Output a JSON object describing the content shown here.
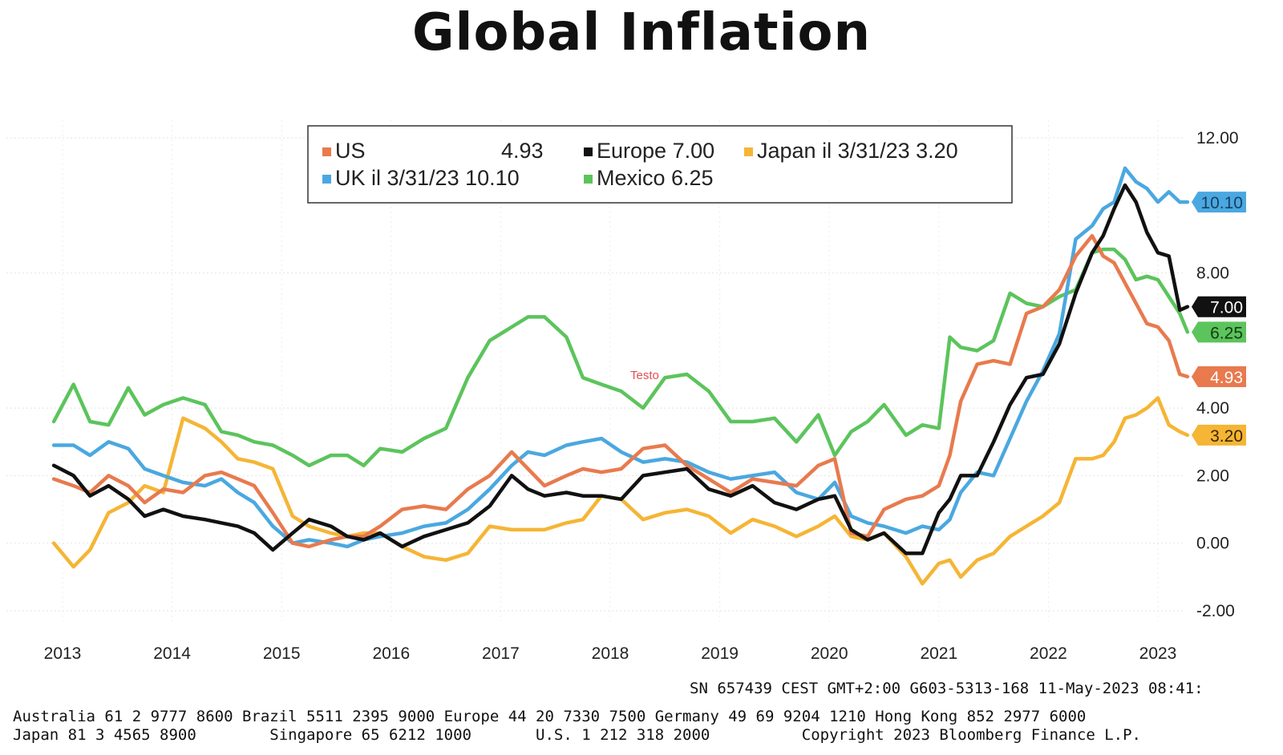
{
  "chart_data": {
    "type": "line",
    "title": "Global Inflation",
    "ylim": [
      -2,
      12
    ],
    "y_ticks": [
      "12.00",
      "8.00",
      "4.00",
      "2.00",
      "0.00",
      "-2.00"
    ],
    "x_ticks": [
      "2013",
      "2014",
      "2015",
      "2016",
      "2017",
      "2018",
      "2019",
      "2020",
      "2021",
      "2022",
      "2023"
    ],
    "grid": true,
    "legend_position": "top",
    "annotation": "Testo",
    "series": [
      {
        "name": "US",
        "legend_mid": "",
        "legend_value": "4.93",
        "badge": "4.93",
        "color": "#e87a4e",
        "x": [
          2012.92,
          2013.1,
          2013.25,
          2013.42,
          2013.6,
          2013.75,
          2013.92,
          2014.1,
          2014.3,
          2014.45,
          2014.6,
          2014.75,
          2014.92,
          2015.1,
          2015.25,
          2015.45,
          2015.6,
          2015.75,
          2015.9,
          2016.1,
          2016.3,
          2016.5,
          2016.7,
          2016.9,
          2017.1,
          2017.25,
          2017.4,
          2017.6,
          2017.75,
          2017.92,
          2018.1,
          2018.3,
          2018.5,
          2018.7,
          2018.9,
          2019.1,
          2019.3,
          2019.5,
          2019.7,
          2019.9,
          2020.05,
          2020.2,
          2020.35,
          2020.5,
          2020.7,
          2020.85,
          2021.0,
          2021.1,
          2021.2,
          2021.35,
          2021.5,
          2021.65,
          2021.8,
          2021.95,
          2022.1,
          2022.25,
          2022.4,
          2022.5,
          2022.6,
          2022.7,
          2022.8,
          2022.9,
          2023.0,
          2023.1,
          2023.2,
          2023.27
        ],
        "y": [
          1.9,
          1.7,
          1.5,
          2.0,
          1.7,
          1.2,
          1.6,
          1.5,
          2.0,
          2.1,
          1.9,
          1.7,
          0.9,
          0.0,
          -0.1,
          0.1,
          0.2,
          0.2,
          0.5,
          1.0,
          1.1,
          1.0,
          1.6,
          2.0,
          2.7,
          2.2,
          1.7,
          2.0,
          2.2,
          2.1,
          2.2,
          2.8,
          2.9,
          2.3,
          1.9,
          1.5,
          1.9,
          1.8,
          1.7,
          2.3,
          2.5,
          0.3,
          0.2,
          1.0,
          1.3,
          1.4,
          1.7,
          2.6,
          4.2,
          5.3,
          5.4,
          5.3,
          6.8,
          7.0,
          7.5,
          8.5,
          9.1,
          8.5,
          8.3,
          7.7,
          7.1,
          6.5,
          6.4,
          6.0,
          5.0,
          4.93
        ]
      },
      {
        "name": "Europe",
        "legend_mid": "",
        "legend_value": "7.00",
        "badge": "7.00",
        "color": "#111111",
        "x": [
          2012.92,
          2013.1,
          2013.25,
          2013.42,
          2013.6,
          2013.75,
          2013.92,
          2014.1,
          2014.3,
          2014.45,
          2014.6,
          2014.75,
          2014.92,
          2015.1,
          2015.25,
          2015.45,
          2015.6,
          2015.75,
          2015.9,
          2016.1,
          2016.3,
          2016.5,
          2016.7,
          2016.9,
          2017.1,
          2017.25,
          2017.4,
          2017.6,
          2017.75,
          2017.92,
          2018.1,
          2018.3,
          2018.5,
          2018.7,
          2018.9,
          2019.1,
          2019.3,
          2019.5,
          2019.7,
          2019.9,
          2020.05,
          2020.2,
          2020.35,
          2020.5,
          2020.7,
          2020.85,
          2021.0,
          2021.1,
          2021.2,
          2021.35,
          2021.5,
          2021.65,
          2021.8,
          2021.95,
          2022.1,
          2022.25,
          2022.4,
          2022.5,
          2022.6,
          2022.7,
          2022.8,
          2022.9,
          2023.0,
          2023.1,
          2023.2,
          2023.27
        ],
        "y": [
          2.3,
          2.0,
          1.4,
          1.7,
          1.3,
          0.8,
          1.0,
          0.8,
          0.7,
          0.6,
          0.5,
          0.3,
          -0.2,
          0.3,
          0.7,
          0.5,
          0.2,
          0.1,
          0.3,
          -0.1,
          0.2,
          0.4,
          0.6,
          1.1,
          2.0,
          1.6,
          1.4,
          1.5,
          1.4,
          1.4,
          1.3,
          2.0,
          2.1,
          2.2,
          1.6,
          1.4,
          1.7,
          1.2,
          1.0,
          1.3,
          1.4,
          0.4,
          0.1,
          0.3,
          -0.3,
          -0.3,
          0.9,
          1.3,
          2.0,
          2.0,
          3.0,
          4.1,
          4.9,
          5.0,
          5.9,
          7.4,
          8.6,
          9.1,
          9.9,
          10.6,
          10.1,
          9.2,
          8.6,
          8.5,
          6.9,
          7.0
        ]
      },
      {
        "name": "Japan",
        "legend_mid": "il 3/31/23",
        "legend_value": "3.20",
        "badge": "3.20",
        "color": "#f5b535",
        "x": [
          2012.92,
          2013.1,
          2013.25,
          2013.42,
          2013.6,
          2013.75,
          2013.92,
          2014.1,
          2014.3,
          2014.45,
          2014.6,
          2014.75,
          2014.92,
          2015.1,
          2015.25,
          2015.45,
          2015.6,
          2015.75,
          2015.9,
          2016.1,
          2016.3,
          2016.5,
          2016.7,
          2016.9,
          2017.1,
          2017.25,
          2017.4,
          2017.6,
          2017.75,
          2017.92,
          2018.1,
          2018.3,
          2018.5,
          2018.7,
          2018.9,
          2019.1,
          2019.3,
          2019.5,
          2019.7,
          2019.9,
          2020.05,
          2020.2,
          2020.35,
          2020.5,
          2020.7,
          2020.85,
          2021.0,
          2021.1,
          2021.2,
          2021.35,
          2021.5,
          2021.65,
          2021.8,
          2021.95,
          2022.1,
          2022.25,
          2022.4,
          2022.5,
          2022.6,
          2022.7,
          2022.8,
          2022.9,
          2023.0,
          2023.1,
          2023.2,
          2023.27
        ],
        "y": [
          0.0,
          -0.7,
          -0.2,
          0.9,
          1.2,
          1.7,
          1.5,
          3.7,
          3.4,
          3.0,
          2.5,
          2.4,
          2.2,
          0.8,
          0.5,
          0.3,
          0.2,
          0.3,
          0.3,
          -0.1,
          -0.4,
          -0.5,
          -0.3,
          0.5,
          0.4,
          0.4,
          0.4,
          0.6,
          0.7,
          1.4,
          1.3,
          0.7,
          0.9,
          1.0,
          0.8,
          0.3,
          0.7,
          0.5,
          0.2,
          0.5,
          0.8,
          0.2,
          0.1,
          0.3,
          -0.4,
          -1.2,
          -0.6,
          -0.5,
          -1.0,
          -0.5,
          -0.3,
          0.2,
          0.5,
          0.8,
          1.2,
          2.5,
          2.5,
          2.6,
          3.0,
          3.7,
          3.8,
          4.0,
          4.3,
          3.5,
          3.3,
          3.2
        ]
      },
      {
        "name": "UK",
        "legend_mid": "il 3/31/23",
        "legend_value": "10.10",
        "badge": "10.10",
        "color": "#4aa8e0",
        "x": [
          2012.92,
          2013.1,
          2013.25,
          2013.42,
          2013.6,
          2013.75,
          2013.92,
          2014.1,
          2014.3,
          2014.45,
          2014.6,
          2014.75,
          2014.92,
          2015.1,
          2015.25,
          2015.45,
          2015.6,
          2015.75,
          2015.9,
          2016.1,
          2016.3,
          2016.5,
          2016.7,
          2016.9,
          2017.1,
          2017.25,
          2017.4,
          2017.6,
          2017.75,
          2017.92,
          2018.1,
          2018.3,
          2018.5,
          2018.7,
          2018.9,
          2019.1,
          2019.3,
          2019.5,
          2019.7,
          2019.9,
          2020.05,
          2020.2,
          2020.35,
          2020.5,
          2020.7,
          2020.85,
          2021.0,
          2021.1,
          2021.2,
          2021.35,
          2021.5,
          2021.65,
          2021.8,
          2021.95,
          2022.1,
          2022.25,
          2022.4,
          2022.5,
          2022.6,
          2022.7,
          2022.8,
          2022.9,
          2023.0,
          2023.1,
          2023.2,
          2023.27
        ],
        "y": [
          2.9,
          2.9,
          2.6,
          3.0,
          2.8,
          2.2,
          2.0,
          1.8,
          1.7,
          1.9,
          1.5,
          1.2,
          0.5,
          0.0,
          0.1,
          0.0,
          -0.1,
          0.1,
          0.2,
          0.3,
          0.5,
          0.6,
          1.0,
          1.6,
          2.3,
          2.7,
          2.6,
          2.9,
          3.0,
          3.1,
          2.7,
          2.4,
          2.5,
          2.4,
          2.1,
          1.9,
          2.0,
          2.1,
          1.5,
          1.3,
          1.8,
          0.8,
          0.6,
          0.5,
          0.3,
          0.5,
          0.4,
          0.7,
          1.5,
          2.1,
          2.0,
          3.1,
          4.2,
          5.1,
          6.2,
          9.0,
          9.4,
          9.9,
          10.1,
          11.1,
          10.7,
          10.5,
          10.1,
          10.4,
          10.1,
          10.1
        ]
      },
      {
        "name": "Mexico",
        "legend_mid": "",
        "legend_value": "6.25",
        "badge": "6.25",
        "color": "#5cc45c",
        "x": [
          2012.92,
          2013.1,
          2013.25,
          2013.42,
          2013.6,
          2013.75,
          2013.92,
          2014.1,
          2014.3,
          2014.45,
          2014.6,
          2014.75,
          2014.92,
          2015.1,
          2015.25,
          2015.45,
          2015.6,
          2015.75,
          2015.9,
          2016.1,
          2016.3,
          2016.5,
          2016.7,
          2016.9,
          2017.1,
          2017.25,
          2017.4,
          2017.6,
          2017.75,
          2017.92,
          2018.1,
          2018.3,
          2018.5,
          2018.7,
          2018.9,
          2019.1,
          2019.3,
          2019.5,
          2019.7,
          2019.9,
          2020.05,
          2020.2,
          2020.35,
          2020.5,
          2020.7,
          2020.85,
          2021.0,
          2021.1,
          2021.2,
          2021.35,
          2021.5,
          2021.65,
          2021.8,
          2021.95,
          2022.1,
          2022.25,
          2022.4,
          2022.5,
          2022.6,
          2022.7,
          2022.8,
          2022.9,
          2023.0,
          2023.1,
          2023.2,
          2023.27
        ],
        "y": [
          3.6,
          4.7,
          3.6,
          3.5,
          4.6,
          3.8,
          4.1,
          4.3,
          4.1,
          3.3,
          3.2,
          3.0,
          2.9,
          2.6,
          2.3,
          2.6,
          2.6,
          2.3,
          2.8,
          2.7,
          3.1,
          3.4,
          4.9,
          6.0,
          6.4,
          6.7,
          6.7,
          6.1,
          4.9,
          4.7,
          4.5,
          4.0,
          4.9,
          5.0,
          4.5,
          3.6,
          3.6,
          3.7,
          3.0,
          3.8,
          2.6,
          3.3,
          3.6,
          4.1,
          3.2,
          3.5,
          3.4,
          6.1,
          5.8,
          5.7,
          6.0,
          7.4,
          7.1,
          7.0,
          7.3,
          7.5,
          8.6,
          8.7,
          8.7,
          8.4,
          7.8,
          7.9,
          7.8,
          7.3,
          6.8,
          6.25
        ]
      }
    ]
  },
  "footer": {
    "sn_line": "SN 657439 CEST GMT+2:00 G603-5313-168 11-May-2023 08:41:",
    "line1": "Australia 61 2 9777 8600 Brazil 5511 2395 9000 Europe 44 20 7330 7500 Germany 49 69 9204 1210 Hong Kong 852 2977 6000",
    "line2": "Japan 81 3 4565 8900        Singapore 65 6212 1000       U.S. 1 212 318 2000          Copyright 2023 Bloomberg Finance L.P."
  }
}
